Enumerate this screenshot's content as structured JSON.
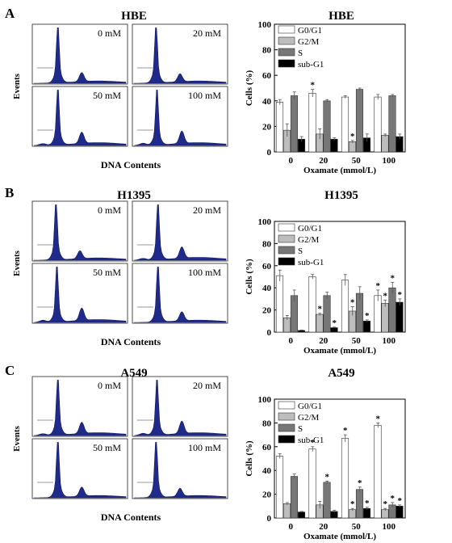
{
  "panels": [
    {
      "letter": "A",
      "cell_line": "HBE",
      "chart_title": "HBE",
      "histogram_labels": [
        "0 mM",
        "20 mM",
        "50 mM",
        "100 mM"
      ],
      "events_label": "Events",
      "dna_label": "DNA Contents",
      "chart_data": {
        "type": "bar",
        "title": "HBE",
        "xlabel": "Oxamate (mmol/L)",
        "ylabel": "Cells (%)",
        "ylim": [
          0,
          100
        ],
        "yticks": [
          "0",
          "20",
          "40",
          "60",
          "80",
          "100"
        ],
        "categories": [
          "0",
          "20",
          "50",
          "100"
        ],
        "legend_position": "top-right",
        "series": [
          {
            "name": "G0/G1",
            "color": "#ffffff",
            "values": [
              39,
              46,
              43,
              43
            ],
            "errors": [
              2,
              3,
              1,
              2
            ],
            "significant": [
              false,
              true,
              false,
              false
            ]
          },
          {
            "name": "G2/M",
            "color": "#bdbdbd",
            "values": [
              17,
              14,
              8,
              13
            ],
            "errors": [
              5,
              4,
              1,
              1
            ],
            "significant": [
              false,
              false,
              true,
              false
            ]
          },
          {
            "name": "S",
            "color": "#777777",
            "values": [
              44,
              40,
              49,
              44
            ],
            "errors": [
              3,
              1,
              1,
              1
            ],
            "significant": [
              false,
              false,
              false,
              false
            ]
          },
          {
            "name": "sub-G1",
            "color": "#000000",
            "values": [
              10,
              10,
              11,
              12
            ],
            "errors": [
              2,
              1,
              3,
              2
            ],
            "significant": [
              false,
              false,
              false,
              false
            ]
          }
        ]
      }
    },
    {
      "letter": "B",
      "cell_line": "H1395",
      "chart_title": "H1395",
      "histogram_labels": [
        "0 mM",
        "20 mM",
        "50 mM",
        "100 mM"
      ],
      "events_label": "Events",
      "dna_label": "DNA Contents",
      "chart_data": {
        "type": "bar",
        "title": "H1395",
        "xlabel": "Oxamate (mmol/L)",
        "ylabel": "Cells (%)",
        "ylim": [
          0,
          100
        ],
        "yticks": [
          "0",
          "20",
          "40",
          "60",
          "80",
          "100"
        ],
        "categories": [
          "0",
          "20",
          "50",
          "100"
        ],
        "legend_position": "top-right",
        "series": [
          {
            "name": "G0/G1",
            "color": "#ffffff",
            "values": [
              51,
              50,
              47,
              33
            ],
            "errors": [
              5,
              2,
              5,
              5
            ],
            "significant": [
              false,
              false,
              false,
              true
            ]
          },
          {
            "name": "G2/M",
            "color": "#bdbdbd",
            "values": [
              13,
              16,
              19,
              26
            ],
            "errors": [
              2,
              1,
              4,
              3
            ],
            "significant": [
              false,
              true,
              true,
              true
            ]
          },
          {
            "name": "S",
            "color": "#777777",
            "values": [
              33,
              33,
              35,
              40
            ],
            "errors": [
              5,
              3,
              6,
              5
            ],
            "significant": [
              false,
              false,
              false,
              true
            ]
          },
          {
            "name": "sub-G1",
            "color": "#000000",
            "values": [
              1.5,
              4,
              10,
              27
            ],
            "errors": [
              0.4,
              0.5,
              1,
              3
            ],
            "significant": [
              false,
              true,
              true,
              true
            ]
          }
        ]
      }
    },
    {
      "letter": "C",
      "cell_line": "A549",
      "chart_title": "A549",
      "histogram_labels": [
        "0 mM",
        "20 mM",
        "50 mM",
        "100 mM"
      ],
      "events_label": "Events",
      "dna_label": "DNA Contents",
      "chart_data": {
        "type": "bar",
        "title": "A549",
        "xlabel": "Oxamate  (mmol/L)",
        "ylabel": "Cells (%)",
        "ylim": [
          0,
          100
        ],
        "yticks": [
          "0",
          "20",
          "40",
          "60",
          "80",
          "100"
        ],
        "categories": [
          "0",
          "20",
          "50",
          "100"
        ],
        "legend_position": "top-right",
        "series": [
          {
            "name": "G0/G1",
            "color": "#ffffff",
            "values": [
              52,
              58,
              67,
              78
            ],
            "errors": [
              2,
              2,
              3,
              2
            ],
            "significant": [
              false,
              true,
              true,
              true
            ]
          },
          {
            "name": "G2/M",
            "color": "#bdbdbd",
            "values": [
              12,
              11,
              7,
              7
            ],
            "errors": [
              1,
              3,
              1,
              1
            ],
            "significant": [
              false,
              false,
              true,
              true
            ]
          },
          {
            "name": "S",
            "color": "#777777",
            "values": [
              35,
              30,
              24,
              11
            ],
            "errors": [
              2,
              1,
              2,
              2
            ],
            "significant": [
              false,
              true,
              true,
              true
            ]
          },
          {
            "name": "sub-G1",
            "color": "#000000",
            "values": [
              5,
              5.5,
              8,
              10
            ],
            "errors": [
              0.5,
              1,
              1,
              1
            ],
            "significant": [
              false,
              false,
              true,
              true
            ]
          }
        ]
      }
    }
  ]
}
